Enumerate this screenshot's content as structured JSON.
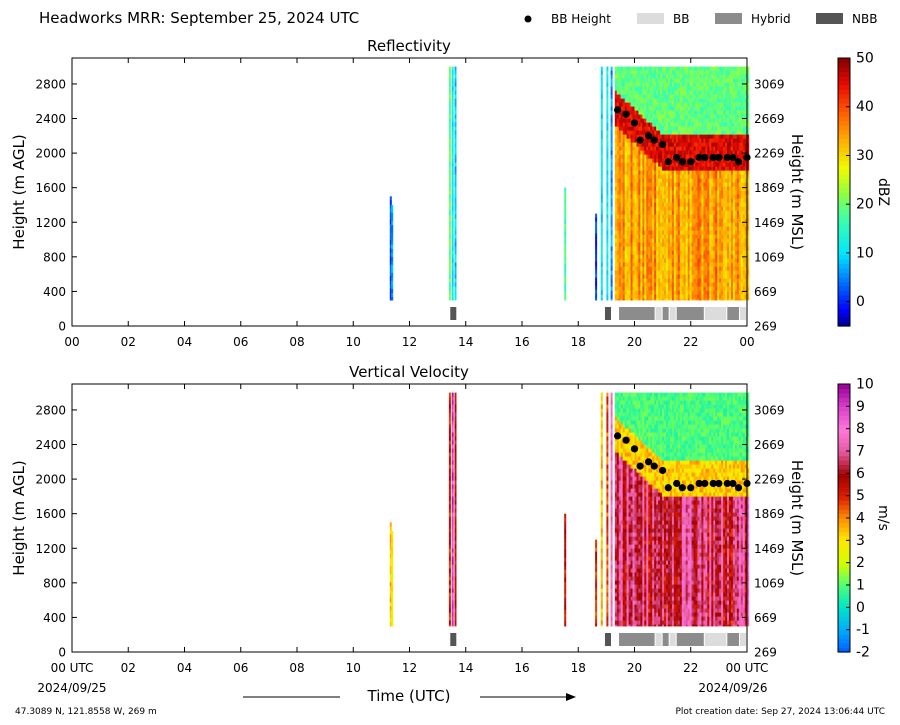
{
  "header": {
    "title": "Headworks MRR:  September 25, 2024 UTC",
    "legend": [
      {
        "label": "BB Height",
        "kind": "dot",
        "color": "#000000"
      },
      {
        "label": "BB",
        "kind": "box",
        "color": "#dcdcdc"
      },
      {
        "label": "Hybrid",
        "kind": "box",
        "color": "#8c8c8c"
      },
      {
        "label": "NBB",
        "kind": "box",
        "color": "#555555"
      }
    ]
  },
  "x_axis": {
    "ticks": [
      "00",
      "02",
      "04",
      "06",
      "08",
      "10",
      "12",
      "14",
      "16",
      "18",
      "20",
      "22",
      "00"
    ],
    "bottom_ticks": [
      "00 UTC",
      "02",
      "04",
      "06",
      "08",
      "10",
      "12",
      "14",
      "16",
      "18",
      "20",
      "22",
      "00 UTC"
    ],
    "start_date": "2024/09/25",
    "end_date": "2024/09/26",
    "label": "Time (UTC)"
  },
  "footer": {
    "location": "47.3089 N, 121.8558 W, 269 m",
    "creation": "Plot creation date: Sep 27, 2024 13:06:44 UTC"
  },
  "chart_data": [
    {
      "type": "heatmap",
      "title": "Reflectivity",
      "xlabel": "",
      "ylabel": "Height (m AGL)",
      "ylabel_right": "Height (m MSL)",
      "xlim": [
        0,
        24
      ],
      "ylim": [
        0,
        3100
      ],
      "y_ticks": [
        0,
        400,
        800,
        1200,
        1600,
        2000,
        2400,
        2800
      ],
      "y_ticks_right": [
        269,
        669,
        1069,
        1469,
        1869,
        2269,
        2669,
        3069
      ],
      "colorbar": {
        "label": "dBZ",
        "range": [
          -5,
          50
        ],
        "ticks": [
          0,
          10,
          20,
          30,
          40,
          50
        ]
      },
      "bb_height": {
        "hours": [
          19.4,
          19.7,
          20.0,
          20.2,
          20.5,
          20.7,
          21.0,
          21.2,
          21.5,
          21.7,
          22.0,
          22.3,
          22.5,
          22.8,
          23.0,
          23.3,
          23.5,
          23.7,
          24.0
        ],
        "heights": [
          2500,
          2450,
          2350,
          2150,
          2200,
          2150,
          2100,
          1900,
          1950,
          1900,
          1900,
          1950,
          1950,
          1950,
          1950,
          1950,
          1950,
          1900,
          1950
        ]
      },
      "bb_type_segments": [
        {
          "start": 13.45,
          "end": 13.7,
          "type": "NBB"
        },
        {
          "start": 18.95,
          "end": 19.2,
          "type": "NBB"
        },
        {
          "start": 19.45,
          "end": 20.75,
          "type": "Hybrid"
        },
        {
          "start": 20.75,
          "end": 21.0,
          "type": "BB"
        },
        {
          "start": 21.0,
          "end": 21.25,
          "type": "Hybrid"
        },
        {
          "start": 21.25,
          "end": 21.5,
          "type": "BB"
        },
        {
          "start": 21.5,
          "end": 22.5,
          "type": "Hybrid"
        },
        {
          "start": 22.5,
          "end": 23.3,
          "type": "BB"
        },
        {
          "start": 23.3,
          "end": 23.75,
          "type": "Hybrid"
        },
        {
          "start": 23.75,
          "end": 24.0,
          "type": "BB"
        }
      ]
    },
    {
      "type": "heatmap",
      "title": "Vertical Velocity",
      "xlabel": "Time (UTC)",
      "ylabel": "Height (m AGL)",
      "ylabel_right": "Height (m MSL)",
      "xlim": [
        0,
        24
      ],
      "ylim": [
        0,
        3100
      ],
      "y_ticks": [
        0,
        400,
        800,
        1200,
        1600,
        2000,
        2400,
        2800
      ],
      "y_ticks_right": [
        269,
        669,
        1069,
        1469,
        1869,
        2269,
        2669,
        3069
      ],
      "colorbar": {
        "label": "m/s",
        "range": [
          -2,
          10
        ],
        "ticks": [
          -2,
          -1,
          0,
          1,
          2,
          3,
          4,
          5,
          6,
          7,
          8,
          9,
          10
        ]
      },
      "bb_height": {
        "hours": [
          19.4,
          19.7,
          20.0,
          20.2,
          20.5,
          20.7,
          21.0,
          21.2,
          21.5,
          21.7,
          22.0,
          22.3,
          22.5,
          22.8,
          23.0,
          23.3,
          23.5,
          23.7,
          24.0
        ],
        "heights": [
          2500,
          2450,
          2350,
          2150,
          2200,
          2150,
          2100,
          1900,
          1950,
          1900,
          1900,
          1950,
          1950,
          1950,
          1950,
          1950,
          1950,
          1900,
          1950
        ]
      },
      "bb_type_segments": [
        {
          "start": 13.45,
          "end": 13.7,
          "type": "NBB"
        },
        {
          "start": 18.95,
          "end": 19.2,
          "type": "NBB"
        },
        {
          "start": 19.45,
          "end": 20.75,
          "type": "Hybrid"
        },
        {
          "start": 20.75,
          "end": 21.0,
          "type": "BB"
        },
        {
          "start": 21.0,
          "end": 21.25,
          "type": "Hybrid"
        },
        {
          "start": 21.25,
          "end": 21.5,
          "type": "BB"
        },
        {
          "start": 21.5,
          "end": 22.5,
          "type": "Hybrid"
        },
        {
          "start": 22.5,
          "end": 23.3,
          "type": "BB"
        },
        {
          "start": 23.3,
          "end": 23.75,
          "type": "Hybrid"
        },
        {
          "start": 23.75,
          "end": 24.0,
          "type": "BB"
        }
      ]
    }
  ]
}
